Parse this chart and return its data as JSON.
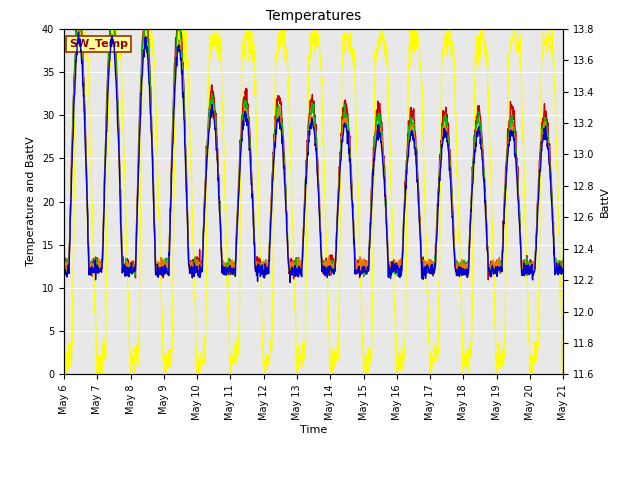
{
  "title": "Temperatures",
  "xlabel": "Time",
  "ylabel_left": "Temperature and BattV",
  "ylabel_right": "BattV",
  "left_ylim": [
    0,
    40
  ],
  "right_ylim": [
    11.6,
    13.8
  ],
  "left_yticks": [
    0,
    5,
    10,
    15,
    20,
    25,
    30,
    35,
    40
  ],
  "right_yticks": [
    11.6,
    11.8,
    12.0,
    12.2,
    12.4,
    12.6,
    12.8,
    13.0,
    13.2,
    13.4,
    13.6,
    13.8
  ],
  "xtick_labels": [
    "May 6",
    "May 7",
    "May 8",
    "May 9",
    "May 10",
    "May 11",
    "May 12",
    "May 13",
    "May 14",
    "May 15",
    "May 16",
    "May 17",
    "May 18",
    "May 19",
    "May 20",
    "May 21"
  ],
  "series_PanelT_color": "#cc0000",
  "series_AirT_color": "#0000cc",
  "series_CNR1_PRT_color": "#00bb00",
  "series_AM25T_PRT_color": "#ee7700",
  "series_BattV_color": "#ffff00",
  "series_lw": 1.0,
  "annotation_text": "SW_Temp",
  "annotation_color": "#990000",
  "annotation_bg": "#ffff99",
  "annotation_border": "#993300",
  "bg_color": "#e8e8e8",
  "grid_color": "#ffffff",
  "title_fontsize": 10,
  "label_fontsize": 8,
  "tick_fontsize": 7,
  "legend_fontsize": 8
}
